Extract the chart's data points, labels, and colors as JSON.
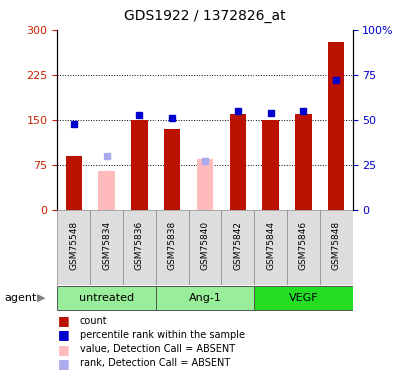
{
  "title": "GDS1922 / 1372826_at",
  "samples": [
    "GSM75548",
    "GSM75834",
    "GSM75836",
    "GSM75838",
    "GSM75840",
    "GSM75842",
    "GSM75844",
    "GSM75846",
    "GSM75848"
  ],
  "red_bar_values": [
    90,
    0,
    150,
    135,
    0,
    160,
    150,
    160,
    280
  ],
  "pink_bar_values": [
    0,
    65,
    0,
    0,
    85,
    0,
    0,
    0,
    0
  ],
  "blue_dot_values": [
    48,
    0,
    53,
    51,
    0,
    55,
    54,
    55,
    72
  ],
  "light_blue_dot_values": [
    0,
    30,
    0,
    0,
    27,
    0,
    0,
    0,
    0
  ],
  "absent_mask": [
    false,
    true,
    false,
    false,
    true,
    false,
    false,
    false,
    false
  ],
  "ylim_left": [
    0,
    300
  ],
  "ylim_right": [
    0,
    100
  ],
  "yticks_left": [
    0,
    75,
    150,
    225,
    300
  ],
  "yticks_right": [
    0,
    25,
    50,
    75,
    100
  ],
  "yticklabels_right": [
    "0",
    "25",
    "50",
    "75",
    "100%"
  ],
  "hlines": [
    75,
    150,
    225
  ],
  "bar_width": 0.5,
  "red_color": "#bb1100",
  "pink_color": "#ffbbbb",
  "blue_color": "#0000cc",
  "light_blue_color": "#aaaaee",
  "agent_label": "agent",
  "legend_items": [
    {
      "label": "count",
      "color": "#bb1100"
    },
    {
      "label": "percentile rank within the sample",
      "color": "#0000cc"
    },
    {
      "label": "value, Detection Call = ABSENT",
      "color": "#ffbbbb"
    },
    {
      "label": "rank, Detection Call = ABSENT",
      "color": "#aaaaee"
    }
  ],
  "bg_color": "#ffffff",
  "plot_bg_color": "#ffffff",
  "ylabel_left_color": "#cc2200",
  "ylabel_right_color": "#0000cc",
  "group_info": [
    {
      "label": "untreated",
      "start": 0,
      "end": 2,
      "color": "#99ee99"
    },
    {
      "label": "Ang-1",
      "start": 3,
      "end": 5,
      "color": "#99ee99"
    },
    {
      "label": "VEGF",
      "start": 6,
      "end": 8,
      "color": "#22dd22"
    }
  ],
  "group_dividers": [
    2.5,
    5.5
  ]
}
